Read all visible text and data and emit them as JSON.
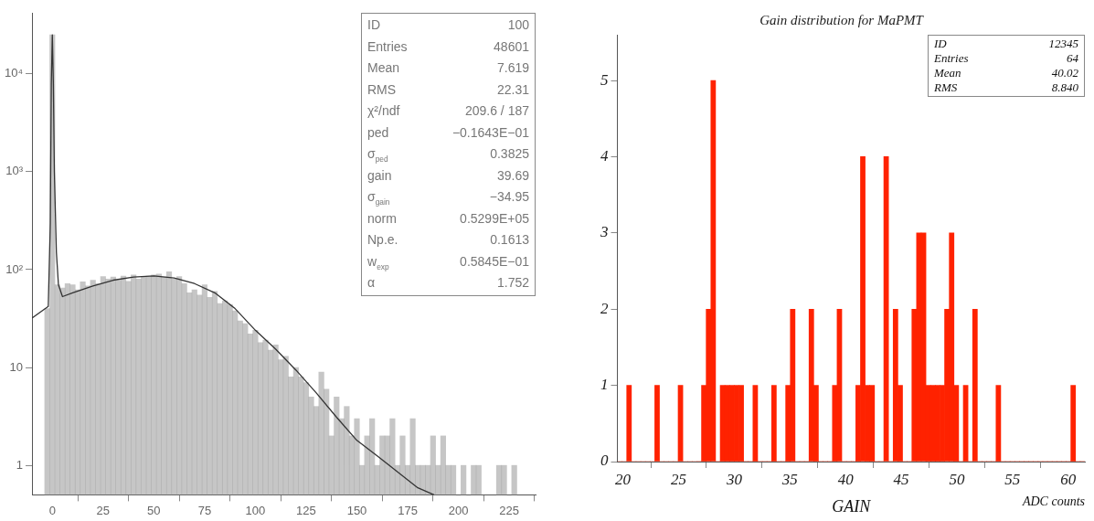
{
  "chart_data": [
    {
      "type": "histogram",
      "log": "y",
      "xlim": [
        -10,
        238
      ],
      "xticks": [
        0,
        25,
        50,
        75,
        100,
        125,
        150,
        175,
        200,
        225
      ],
      "ylim": [
        0.5,
        42000
      ],
      "yticks": [
        {
          "value": 1,
          "label": "1"
        },
        {
          "value": 10,
          "label": "10"
        },
        {
          "value": 100,
          "label": "10²"
        },
        {
          "value": 1000,
          "label": "10³"
        },
        {
          "value": 10000,
          "label": "10⁴"
        }
      ],
      "bins": [
        -3.75,
        -1.25,
        1.25,
        3.75,
        6.25,
        8.75,
        11.25,
        13.75,
        16.25,
        18.75,
        21.25,
        23.75,
        26.25,
        28.75,
        31.25,
        33.75,
        36.25,
        38.75,
        41.25,
        43.75,
        46.25,
        48.75,
        51.25,
        53.75,
        56.25,
        58.75,
        61.25,
        63.75,
        66.25,
        68.75,
        71.25,
        73.75,
        76.25,
        78.75,
        81.25,
        83.75,
        86.25,
        88.75,
        91.25,
        93.75,
        96.25,
        98.75,
        101.25,
        103.75,
        106.25,
        108.75,
        111.25,
        113.75,
        116.25,
        118.75,
        121.25,
        123.75,
        126.25,
        128.75,
        131.25,
        133.75,
        136.25,
        138.75,
        141.25,
        143.75,
        146.25,
        148.75,
        151.25,
        153.75,
        156.25,
        158.75,
        161.25,
        163.75,
        166.25,
        168.75,
        171.25,
        173.75,
        176.25,
        178.75,
        181.25,
        183.75,
        186.25,
        188.75,
        191.25,
        193.75,
        196.25,
        198.75,
        201.25,
        203.75,
        206.25,
        208.75,
        211.25,
        213.75,
        216.25,
        218.75,
        221.25,
        223.75,
        226.25,
        228.75
      ],
      "series": [
        {
          "type": "histogram",
          "color": "#a0a0a0",
          "values": [
            40,
            25000,
            70,
            65,
            72,
            70,
            62,
            75,
            68,
            78,
            72,
            85,
            80,
            84,
            78,
            86,
            76,
            88,
            80,
            84,
            86,
            88,
            90,
            84,
            95,
            80,
            85,
            72,
            58,
            62,
            55,
            70,
            52,
            60,
            45,
            48,
            44,
            38,
            30,
            28,
            22,
            24,
            18,
            19,
            15,
            17,
            12,
            13,
            8,
            10,
            8,
            7,
            5,
            4,
            9,
            6,
            2,
            5,
            3,
            4,
            2,
            3,
            1,
            2,
            3,
            1,
            2,
            2,
            3,
            1,
            2,
            1,
            3,
            1,
            1,
            1,
            2,
            1,
            2,
            1,
            1,
            null,
            1,
            null,
            1,
            1,
            null,
            null,
            null,
            1,
            1,
            null,
            1
          ]
        },
        {
          "type": "line",
          "color": "#333333",
          "x": [
            -10,
            -5,
            -2,
            -1,
            -0.5,
            0,
            0.5,
            1,
            2,
            3,
            5,
            10,
            20,
            30,
            40,
            50,
            60,
            70,
            80,
            90,
            100,
            110,
            120,
            130,
            140,
            150,
            160,
            170,
            180,
            188
          ],
          "values": [
            32,
            38,
            42,
            300,
            8000,
            25000,
            8000,
            1000,
            150,
            70,
            53,
            58,
            68,
            78,
            84,
            86,
            82,
            72,
            58,
            40,
            24,
            15.4,
            9.4,
            5.5,
            3.1,
            1.8,
            1.25,
            0.86,
            0.59,
            0.5
          ]
        }
      ],
      "annotations": [
        "ID 100",
        "Entries 48601",
        "Mean 7.619",
        "RMS 22.31",
        "χ²/ndf 209.6 / 187",
        "ped −0.1643E−01",
        "σ$_{ped}$ 0.3825",
        "gain 39.69",
        "σ$_{gain}$ −34.95",
        "norm 0.5299E+05",
        "Np.e. 0.1613",
        "w$_{exp}$ 0.5845E−01",
        "α 1.752"
      ]
    },
    {
      "type": "histogram",
      "title": "Gain distribution for MaPMT",
      "xlabel": "GAIN",
      "color": "#ff2200",
      "xlim": [
        19.5,
        61.5
      ],
      "xticks": [
        20,
        25,
        30,
        35,
        40,
        45,
        50,
        55,
        60
      ],
      "ylim": [
        0,
        5.6
      ],
      "yticks": [
        0,
        1,
        2,
        3,
        4,
        5
      ],
      "bins": [
        19.5,
        19.92,
        20.34,
        20.76,
        21.18,
        21.6,
        22.02,
        22.44,
        22.86,
        23.28,
        23.7,
        24.12,
        24.54,
        24.96,
        25.38,
        25.8,
        26.22,
        26.64,
        27.06,
        27.48,
        27.9,
        28.32,
        28.74,
        29.16,
        29.58,
        30,
        30.42,
        30.84,
        31.26,
        31.68,
        32.1,
        32.52,
        32.94,
        33.36,
        33.78,
        34.2,
        34.62,
        35.04,
        35.46,
        35.88,
        36.3,
        36.72,
        37.14,
        37.56,
        37.98,
        38.4,
        38.82,
        39.24,
        39.66,
        40.08,
        40.5,
        40.92,
        41.34,
        41.76,
        42.18,
        42.6,
        43.02,
        43.44,
        43.86,
        44.28,
        44.7,
        45.12,
        45.54,
        45.96,
        46.38,
        46.8,
        47.22,
        47.64,
        48.06,
        48.48,
        48.9,
        49.32,
        49.74,
        50.16,
        50.58,
        51,
        51.42,
        51.84,
        52.26,
        52.68,
        53.1,
        53.52,
        53.94,
        54.36,
        54.78,
        55.2,
        55.62,
        56.04,
        56.46,
        56.88,
        57.3,
        57.72,
        58.14,
        58.56,
        58.98,
        59.4,
        59.82,
        60.24,
        60.66,
        61.08,
        61.5
      ],
      "values": [
        0,
        0,
        1,
        0,
        0,
        0,
        0,
        0,
        1,
        0,
        0,
        0,
        0,
        1,
        0,
        0,
        0,
        0,
        1,
        2,
        5,
        0,
        1,
        1,
        1,
        1,
        1,
        0,
        0,
        1,
        0,
        0,
        0,
        1,
        0,
        0,
        1,
        2,
        0,
        0,
        0,
        2,
        1,
        0,
        0,
        0,
        1,
        2,
        0,
        0,
        0,
        1,
        4,
        1,
        1,
        0,
        0,
        4,
        0,
        2,
        1,
        0,
        0,
        2,
        3,
        3,
        1,
        1,
        1,
        1,
        2,
        3,
        1,
        0,
        1,
        0,
        2,
        0,
        0,
        0,
        0,
        1,
        0,
        0,
        0,
        0,
        0,
        0,
        0,
        0,
        0,
        0,
        0,
        0,
        0,
        0,
        0,
        1,
        0,
        0
      ],
      "annotations": [
        "ID 12345",
        "Entries 64",
        "Mean 40.02",
        "RMS 8.840",
        "ADC counts"
      ]
    }
  ]
}
